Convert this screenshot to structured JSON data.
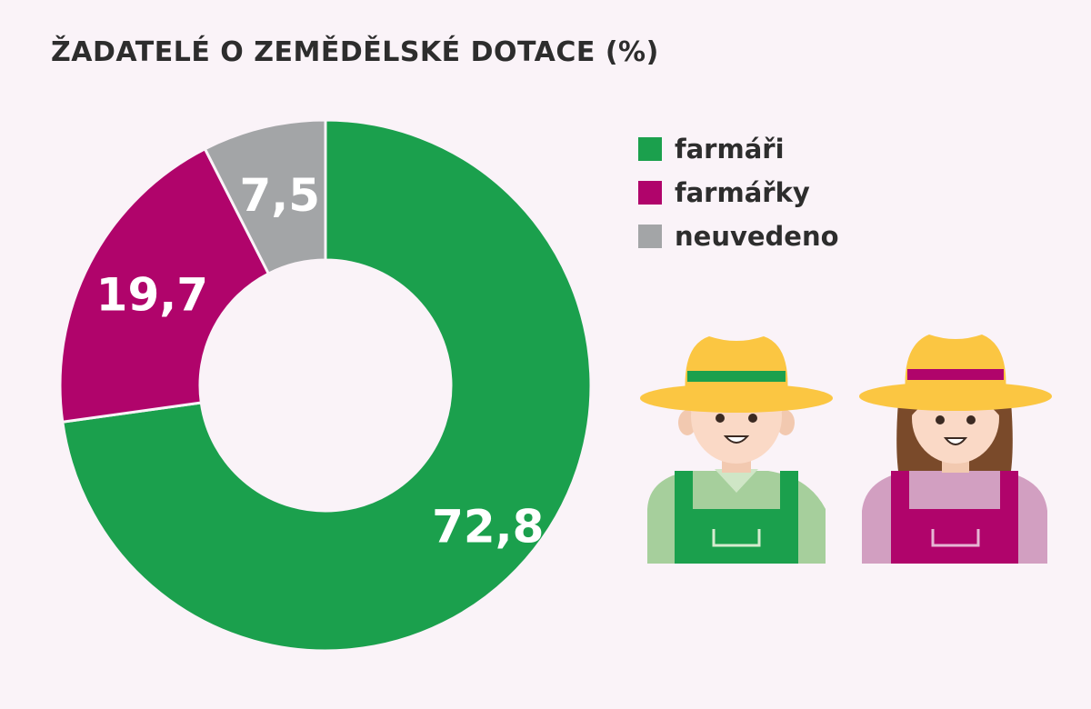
{
  "title": "ŽADATELÉ O ZEMĚDĚLSKÉ DOTACE (%)",
  "chart_data": {
    "type": "pie",
    "variant": "donut",
    "title": "ŽADATELÉ O ZEMĚDĚLSKÉ DOTACE (%)",
    "labels": [
      "farmáři",
      "farmářky",
      "neuvedeno"
    ],
    "values": [
      72.8,
      19.7,
      7.5
    ],
    "value_labels": [
      "72,8",
      "19,7",
      "7,5"
    ],
    "colors": [
      "#1ba04d",
      "#b0046b",
      "#a3a5a7"
    ],
    "legend_position": "right"
  },
  "legend": [
    {
      "label": "farmáři",
      "color": "#1ba04d"
    },
    {
      "label": "farmářky",
      "color": "#b0046b"
    },
    {
      "label": "neuvedeno",
      "color": "#a3a5a7"
    }
  ],
  "illustration": {
    "icons": [
      "male-farmer-icon",
      "female-farmer-icon"
    ]
  }
}
